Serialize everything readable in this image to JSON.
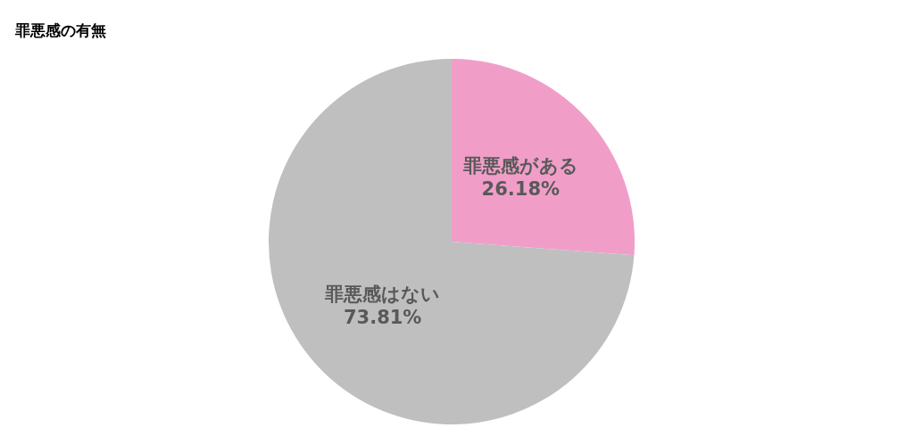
{
  "chart_data": {
    "type": "pie",
    "title": "罪悪感の有無",
    "categories": [
      "罪悪感がある",
      "罪悪感はない"
    ],
    "values": [
      26.18,
      73.81
    ],
    "colors": [
      "#f09ec8",
      "#bfbfbf"
    ],
    "value_labels": [
      "26.18%",
      "73.81%"
    ],
    "legend": false
  }
}
